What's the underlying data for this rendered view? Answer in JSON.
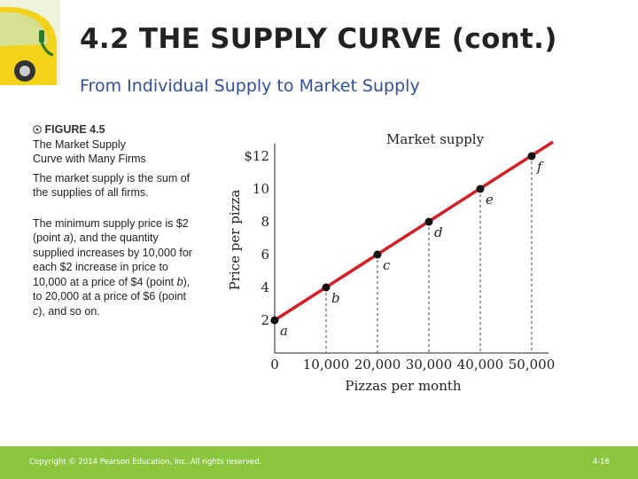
{
  "slide": {
    "title": "4.2 THE SUPPLY CURVE (cont.)",
    "subtitle": "From Individual Supply to Market Supply"
  },
  "caption": {
    "figure_icon": "play-circle-icon",
    "figure_label": "FIGURE 4.5",
    "figure_title_line1": "The Market Supply",
    "figure_title_line2": "Curve with Many Firms",
    "paragraph1": "The market supply is the sum of the supplies of all firms.",
    "paragraph2_a": "The minimum supply price is $2 (point ",
    "paragraph2_a_em": "a",
    "paragraph2_b": "), and the quantity supplied increases by 10,000 for each $2 increase in price to 10,000 at a price of $4 (point ",
    "paragraph2_b_em": "b",
    "paragraph2_c": "), to 20,000 at a price of $6 (point ",
    "paragraph2_c_em": "c",
    "paragraph2_d": "), and so on."
  },
  "footer": {
    "copyright": "Copyright © 2014 Pearson Education, Inc. All rights reserved.",
    "page": "4-16"
  },
  "colors": {
    "curve": "#d32027",
    "footer": "#8cc63f",
    "subtitle": "#2f4fa0"
  },
  "chart_data": {
    "type": "line",
    "title": "",
    "series": [
      {
        "name": "Market supply",
        "points": [
          {
            "label": "a",
            "x": 0,
            "y": 2
          },
          {
            "label": "b",
            "x": 10000,
            "y": 4
          },
          {
            "label": "c",
            "x": 20000,
            "y": 6
          },
          {
            "label": "d",
            "x": 30000,
            "y": 8
          },
          {
            "label": "e",
            "x": 40000,
            "y": 10
          },
          {
            "label": "f",
            "x": 50000,
            "y": 12
          }
        ]
      }
    ],
    "curve_label": "Market supply",
    "xlabel": "Pizzas per month",
    "ylabel": "Price per pizza",
    "xticks": [
      "0",
      "10,000",
      "20,000",
      "30,000",
      "40,000",
      "50,000"
    ],
    "yticks": [
      "2",
      "4",
      "6",
      "8",
      "10",
      "$12"
    ],
    "xlim": [
      0,
      55000
    ],
    "ylim": [
      0,
      13
    ],
    "grid": false,
    "dropdown_lines": true
  }
}
